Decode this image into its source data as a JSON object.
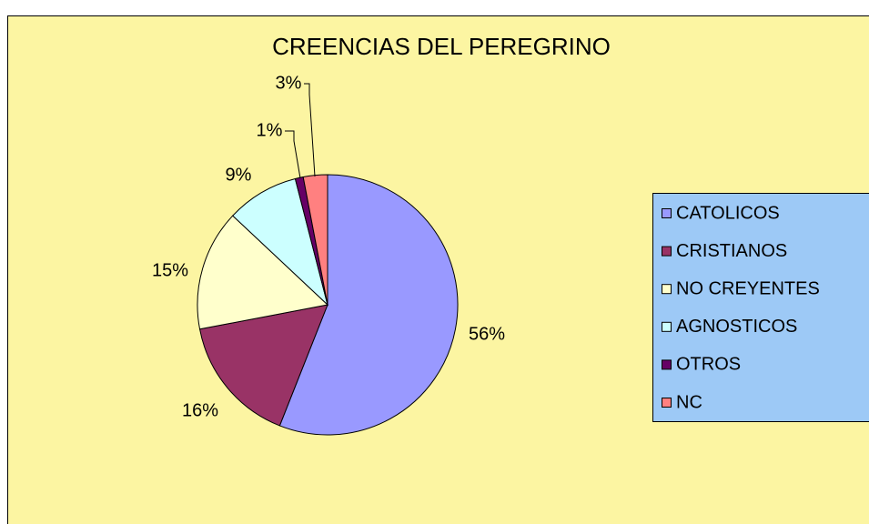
{
  "chart_data": {
    "type": "pie",
    "title": "CREENCIAS DEL PEREGRINO",
    "categories": [
      "CATOLICOS",
      "CRISTIANOS",
      "NO CREYENTES",
      "AGNOSTICOS",
      "OTROS",
      "NC"
    ],
    "values": [
      56,
      16,
      15,
      9,
      1,
      3
    ],
    "value_labels": [
      "56%",
      "16%",
      "15%",
      "9%",
      "1%",
      "3%"
    ],
    "colors": [
      "#9999ff",
      "#993366",
      "#ffffcc",
      "#ccffff",
      "#660066",
      "#ff8080"
    ],
    "legend": "right"
  }
}
